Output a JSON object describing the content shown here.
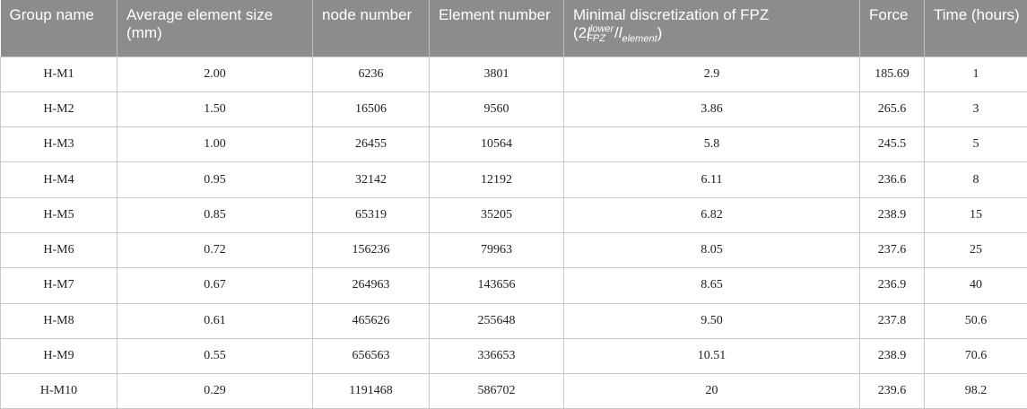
{
  "table": {
    "headers": {
      "group": "Group name",
      "size": "Average element size (mm)",
      "node": "node number",
      "element": "Element number",
      "fpz_prefix": "Minimal discretization of FPZ (2",
      "fpz_l1": "l",
      "fpz_sup": "lower",
      "fpz_sub": "FPZ",
      "fpz_slash": "/",
      "fpz_l2": "l",
      "fpz_sub2": "element",
      "fpz_suffix": ")",
      "force": "Force",
      "time": "Time (hours)"
    },
    "rows": [
      {
        "group": "H-M1",
        "size": "2.00",
        "node": "6236",
        "element": "3801",
        "fpz": "2.9",
        "force": "185.69",
        "time": "1"
      },
      {
        "group": "H-M2",
        "size": "1.50",
        "node": "16506",
        "element": "9560",
        "fpz": "3.86",
        "force": "265.6",
        "time": "3"
      },
      {
        "group": "H-M3",
        "size": "1.00",
        "node": "26455",
        "element": "10564",
        "fpz": "5.8",
        "force": "245.5",
        "time": "5"
      },
      {
        "group": "H-M4",
        "size": "0.95",
        "node": "32142",
        "element": "12192",
        "fpz": "6.11",
        "force": "236.6",
        "time": "8"
      },
      {
        "group": "H-M5",
        "size": "0.85",
        "node": "65319",
        "element": "35205",
        "fpz": "6.82",
        "force": "238.9",
        "time": "15"
      },
      {
        "group": "H-M6",
        "size": "0.72",
        "node": "156236",
        "element": "79963",
        "fpz": "8.05",
        "force": "237.6",
        "time": "25"
      },
      {
        "group": "H-M7",
        "size": "0.67",
        "node": "264963",
        "element": "143656",
        "fpz": "8.65",
        "force": "236.9",
        "time": "40"
      },
      {
        "group": "H-M8",
        "size": "0.61",
        "node": "465626",
        "element": "255648",
        "fpz": "9.50",
        "force": "237.8",
        "time": "50.6"
      },
      {
        "group": "H-M9",
        "size": "0.55",
        "node": "656563",
        "element": "336653",
        "fpz": "10.51",
        "force": "238.9",
        "time": "70.6"
      },
      {
        "group": "H-M10",
        "size": "0.29",
        "node": "1191468",
        "element": "586702",
        "fpz": "20",
        "force": "239.6",
        "time": "98.2"
      }
    ]
  }
}
